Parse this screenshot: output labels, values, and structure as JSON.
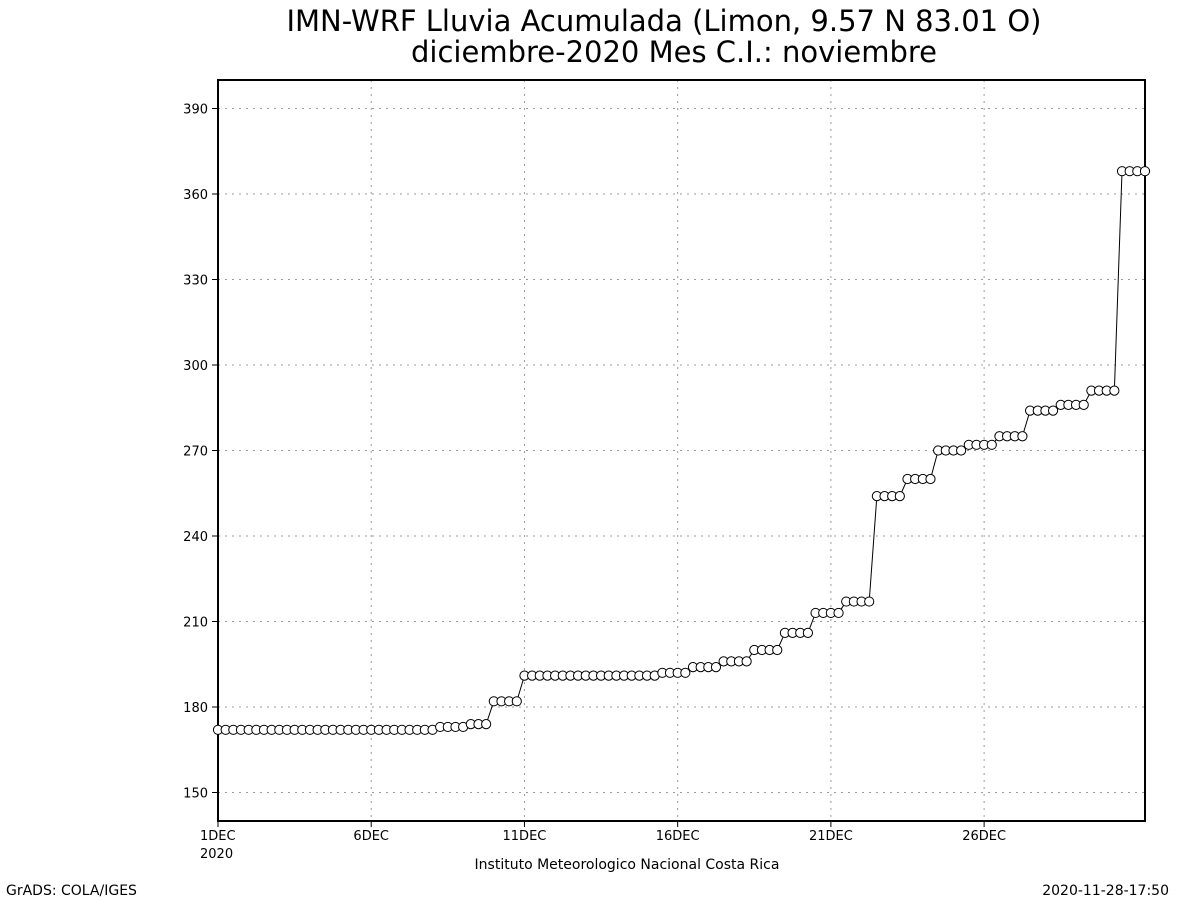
{
  "chart_data": {
    "type": "line",
    "title": "IMN-WRF  Lluvia Acumulada (Limon, 9.57  N 83.01  O)",
    "subtitle": "diciembre-2020 Mes C.I.: noviembre",
    "xlabel": "Instituto Meteorologico Nacional Costa Rica",
    "ylabel": "",
    "ylim": [
      140,
      400
    ],
    "xlim": [
      1,
      31.25
    ],
    "y_ticks": [
      150,
      180,
      210,
      240,
      270,
      300,
      330,
      360,
      390
    ],
    "x_ticks": [
      {
        "day": 1,
        "label": "1DEC"
      },
      {
        "day": 6,
        "label": "6DEC"
      },
      {
        "day": 11,
        "label": "11DEC"
      },
      {
        "day": 16,
        "label": "16DEC"
      },
      {
        "day": 21,
        "label": "21DEC"
      },
      {
        "day": 26,
        "label": "26DEC"
      }
    ],
    "x_year_label": "2020",
    "x_step_days": 0.25,
    "x_start_day": 1,
    "grid": true,
    "marker": "open-circle",
    "series": [
      {
        "values": [
          172,
          172,
          172,
          172,
          172,
          172,
          172,
          172,
          172,
          172,
          172,
          172,
          172,
          172,
          172,
          172,
          172,
          172,
          172,
          172,
          172,
          172,
          172,
          172,
          172,
          172,
          172,
          172,
          172,
          173,
          173,
          173,
          173,
          174,
          174,
          174,
          182,
          182,
          182,
          182,
          191,
          191,
          191,
          191,
          191,
          191,
          191,
          191,
          191,
          191,
          191,
          191,
          191,
          191,
          191,
          191,
          191,
          191,
          192,
          192,
          192,
          192,
          194,
          194,
          194,
          194,
          196,
          196,
          196,
          196,
          200,
          200,
          200,
          200,
          206,
          206,
          206,
          206,
          213,
          213,
          213,
          213,
          217,
          217,
          217,
          217,
          254,
          254,
          254,
          254,
          260,
          260,
          260,
          260,
          270,
          270,
          270,
          270,
          272,
          272,
          272,
          272,
          275,
          275,
          275,
          275,
          284,
          284,
          284,
          284,
          286,
          286,
          286,
          286,
          291,
          291,
          291,
          291,
          368,
          368,
          368,
          368
        ]
      }
    ]
  },
  "footer": {
    "left": "GrADS: COLA/IGES",
    "right": "2020-11-28-17:50"
  }
}
